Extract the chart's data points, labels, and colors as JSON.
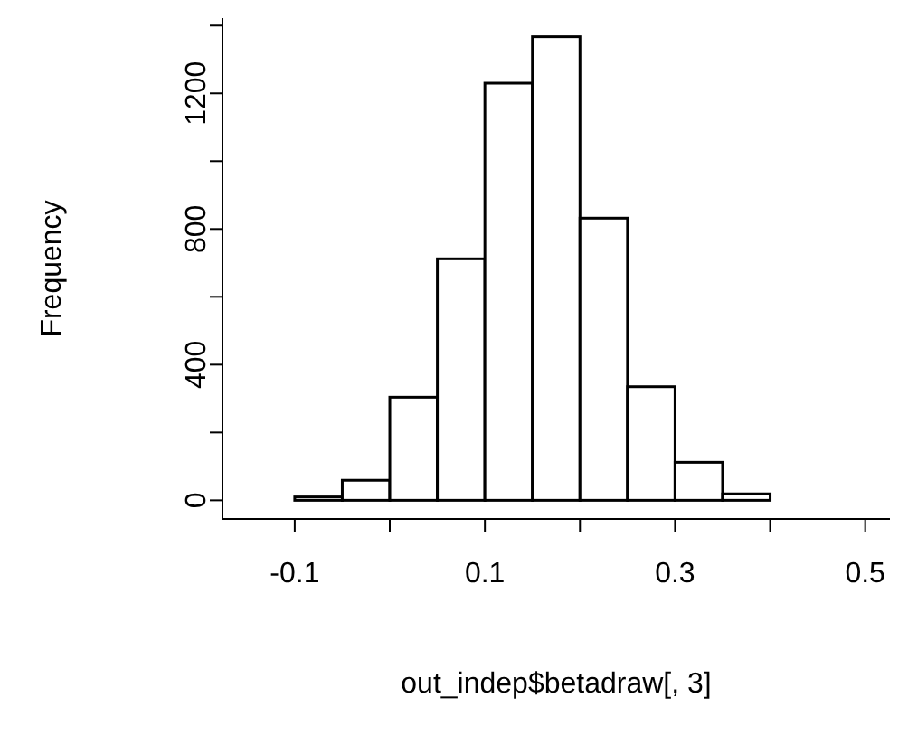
{
  "chart_data": {
    "type": "histogram",
    "xlabel": "out_indep$betadraw[, 3]",
    "ylabel": "Frequency",
    "color": "#ffffff",
    "bins": [
      -0.15,
      -0.1,
      -0.05,
      0,
      0.05,
      0.1,
      0.15,
      0.2,
      0.25,
      0.3,
      0.35,
      0.4,
      0.45,
      0.5
    ],
    "values": [
      0,
      10,
      59,
      304,
      712,
      1230,
      1367,
      832,
      335,
      112,
      19,
      0,
      0
    ],
    "xlim": [
      -0.176,
      0.526
    ],
    "ylim": [
      -55,
      1422
    ],
    "xticks": [
      -0.1,
      {
        "value": 0,
        "label": null
      },
      0.1,
      {
        "value": 0.2,
        "label": null
      },
      0.3,
      {
        "value": 0.4,
        "label": null
      },
      0.5
    ],
    "yticks": [
      0,
      {
        "value": 200,
        "label": null
      },
      400,
      {
        "value": 600,
        "label": null
      },
      800,
      {
        "value": 1000,
        "label": null
      },
      1200,
      {
        "value": 1400,
        "label": null
      }
    ]
  }
}
